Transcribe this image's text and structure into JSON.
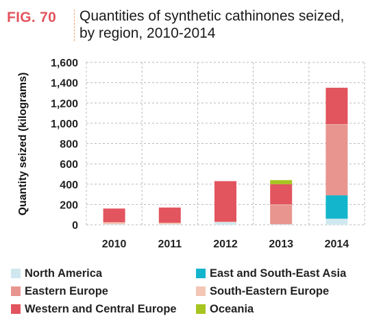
{
  "header": {
    "fig_label": "FIG. 70",
    "title_line1": "Quantities of synthetic cathinones seized,",
    "title_line2": "by region, 2010-2014"
  },
  "chart_data": {
    "type": "bar",
    "stacked": true,
    "categories": [
      "2010",
      "2011",
      "2012",
      "2013",
      "2014"
    ],
    "ylabel": "Quantity seized (kilograms)",
    "ylim": [
      0,
      1600
    ],
    "yticks": [
      0,
      200,
      400,
      600,
      800,
      1000,
      1200,
      1400,
      1600
    ],
    "ytick_labels": [
      "0",
      "200",
      "400",
      "600",
      "800",
      "1,000",
      "1,200",
      "1,400",
      "1,600"
    ],
    "grid": "dashed",
    "legend_position": "bottom",
    "series": [
      {
        "name": "North America",
        "color": "#cfe8f0",
        "values": [
          5,
          5,
          25,
          5,
          60
        ]
      },
      {
        "name": "East and South-East Asia",
        "color": "#12b5cc",
        "values": [
          0,
          0,
          0,
          0,
          230
        ]
      },
      {
        "name": "Eastern Europe",
        "color": "#e8948f",
        "values": [
          0,
          0,
          0,
          190,
          695
        ]
      },
      {
        "name": "South-Eastern Europe",
        "color": "#f4c6b6",
        "values": [
          20,
          15,
          5,
          5,
          5
        ]
      },
      {
        "name": "Western and Central Europe",
        "color": "#e2545e",
        "values": [
          135,
          150,
          400,
          200,
          360
        ]
      },
      {
        "name": "Oceania",
        "color": "#a7c520",
        "values": [
          0,
          0,
          0,
          40,
          0
        ]
      }
    ]
  }
}
